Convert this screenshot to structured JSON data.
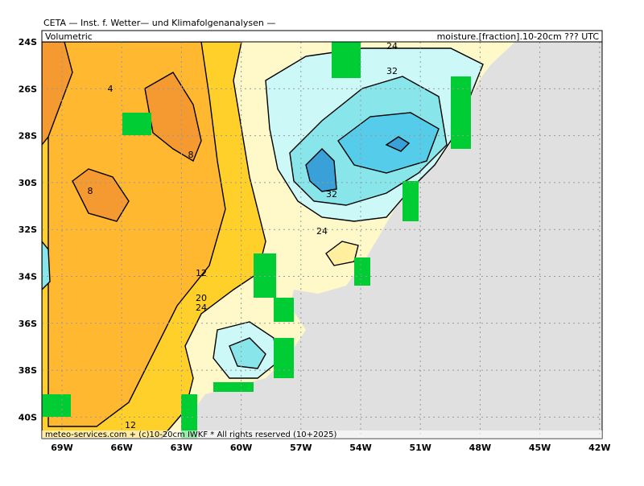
{
  "header": {
    "title": "CETA — Inst. f. Wetter— und Klimafolgenanalysen —",
    "left": "Volumetric",
    "right": "moisture.[fraction].10-20cm ??? UTC"
  },
  "footer": "meteo-services.com + (c)10-20cm IWKF * All rights reserved (10+2025)",
  "axes": {
    "lat_labels": [
      "24S",
      "26S",
      "28S",
      "30S",
      "32S",
      "34S",
      "36S",
      "38S",
      "40S"
    ],
    "lon_labels": [
      "69W",
      "66W",
      "63W",
      "60W",
      "57W",
      "54W",
      "51W",
      "48W",
      "45W",
      "42W"
    ]
  },
  "contour_labels": [
    "24",
    "32",
    "4",
    "8",
    "8",
    "32",
    "24",
    "12",
    "20",
    "24",
    "12"
  ]
}
